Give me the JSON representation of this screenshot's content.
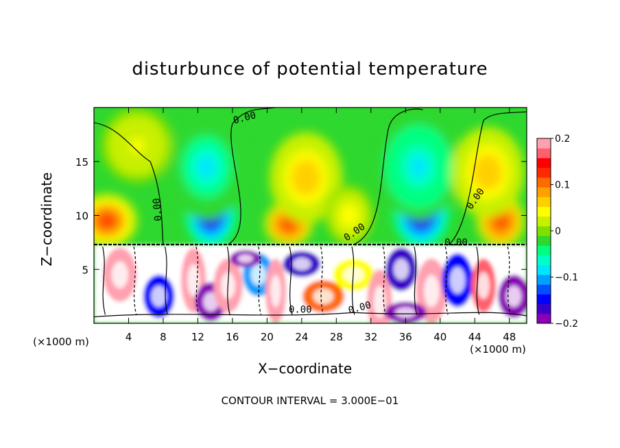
{
  "chart_data": {
    "type": "heatmap",
    "title": "disturbunce of potential temperature",
    "xlabel": "X−coordinate",
    "ylabel": "Z−coordinate",
    "x_unit": "(×1000 m)",
    "x_ticks": [
      4,
      8,
      12,
      16,
      20,
      24,
      28,
      32,
      36,
      40,
      44,
      48
    ],
    "y_ticks": [
      5,
      10,
      15
    ],
    "xlim": [
      0,
      50
    ],
    "ylim": [
      0,
      20
    ],
    "colorbar": {
      "ticks": [
        0.2,
        0.1,
        0,
        -0.1,
        -0.2
      ],
      "tick_labels": [
        "0.2",
        "0.1",
        "0",
        "−0.1",
        "−0.2"
      ],
      "range": [
        -0.2,
        0.2
      ],
      "colors": [
        "#8a00b8",
        "#3b00c8",
        "#0000ff",
        "#0050ff",
        "#00a0ff",
        "#00e5ff",
        "#00ffc8",
        "#00ff80",
        "#2ed82e",
        "#7fe000",
        "#c8f000",
        "#ffff00",
        "#ffd000",
        "#ffa000",
        "#ff6a00",
        "#ff2a00",
        "#ff0000",
        "#ff6070",
        "#ffa0b0"
      ]
    },
    "contour_label": "0.00",
    "contour_interval_text": "CONTOUR INTERVAL = 3.000E−01",
    "blobs": [
      {
        "x": 13.5,
        "z": 10.5,
        "v": -0.22,
        "sx": 2.2,
        "sz": 2.6
      },
      {
        "x": 13.0,
        "z": 14.5,
        "v": -0.08,
        "sx": 3.5,
        "sz": 3.5
      },
      {
        "x": 37.8,
        "z": 10.5,
        "v": -0.22,
        "sx": 2.4,
        "sz": 2.6
      },
      {
        "x": 37.5,
        "z": 14.5,
        "v": -0.09,
        "sx": 3.5,
        "sz": 3.5
      },
      {
        "x": 1.5,
        "z": 9.5,
        "v": 0.13,
        "sx": 2.5,
        "sz": 1.8
      },
      {
        "x": 22.5,
        "z": 9.2,
        "v": 0.14,
        "sx": 2.0,
        "sz": 1.5
      },
      {
        "x": 24.5,
        "z": 13.5,
        "v": 0.07,
        "sx": 3.0,
        "sz": 3.0
      },
      {
        "x": 47.0,
        "z": 9.5,
        "v": 0.14,
        "sx": 2.0,
        "sz": 1.8
      },
      {
        "x": 45.5,
        "z": 14.0,
        "v": 0.07,
        "sx": 3.0,
        "sz": 3.0
      },
      {
        "x": 29.5,
        "z": 10.0,
        "v": 0.05,
        "sx": 2.0,
        "sz": 2.0
      },
      {
        "x": 5.0,
        "z": 16.5,
        "v": 0.04,
        "sx": 3.0,
        "sz": 2.5
      }
    ],
    "lower_layer": [
      {
        "x": 3.0,
        "z": 4.5,
        "v": 0.25,
        "sx": 1.6,
        "sz": 2.5
      },
      {
        "x": 7.5,
        "z": 2.5,
        "v": -0.15,
        "sx": 1.5,
        "sz": 2.0
      },
      {
        "x": 11.5,
        "z": 4.0,
        "v": 0.22,
        "sx": 1.2,
        "sz": 3.0
      },
      {
        "x": 13.5,
        "z": 2.0,
        "v": -0.2,
        "sx": 1.5,
        "sz": 1.8
      },
      {
        "x": 15.5,
        "z": 3.5,
        "v": 0.25,
        "sx": 1.4,
        "sz": 2.5
      },
      {
        "x": 19.0,
        "z": 4.5,
        "v": -0.12,
        "sx": 1.5,
        "sz": 2.0
      },
      {
        "x": 21.0,
        "z": 3.0,
        "v": 0.25,
        "sx": 1.0,
        "sz": 3.0
      },
      {
        "x": 24.0,
        "z": 5.5,
        "v": -0.18,
        "sx": 1.8,
        "sz": 1.2
      },
      {
        "x": 26.5,
        "z": 2.5,
        "v": 0.12,
        "sx": 2.0,
        "sz": 1.5
      },
      {
        "x": 30.0,
        "z": 4.5,
        "v": 0.04,
        "sx": 2.0,
        "sz": 1.5
      },
      {
        "x": 33.0,
        "z": 2.0,
        "v": 0.22,
        "sx": 1.2,
        "sz": 3.0
      },
      {
        "x": 35.5,
        "z": 5.0,
        "v": -0.18,
        "sx": 1.5,
        "sz": 2.0
      },
      {
        "x": 39.0,
        "z": 3.0,
        "v": 0.25,
        "sx": 1.5,
        "sz": 3.0
      },
      {
        "x": 42.0,
        "z": 4.0,
        "v": -0.15,
        "sx": 1.5,
        "sz": 2.5
      },
      {
        "x": 45.0,
        "z": 3.5,
        "v": 0.18,
        "sx": 1.2,
        "sz": 2.5
      },
      {
        "x": 48.5,
        "z": 2.5,
        "v": -0.2,
        "sx": 1.5,
        "sz": 2.0
      },
      {
        "x": 17.5,
        "z": 6.0,
        "v": -0.2,
        "sx": 1.5,
        "sz": 0.8
      },
      {
        "x": 36.0,
        "z": 1.0,
        "v": -0.22,
        "sx": 2.0,
        "sz": 1.0
      }
    ]
  }
}
